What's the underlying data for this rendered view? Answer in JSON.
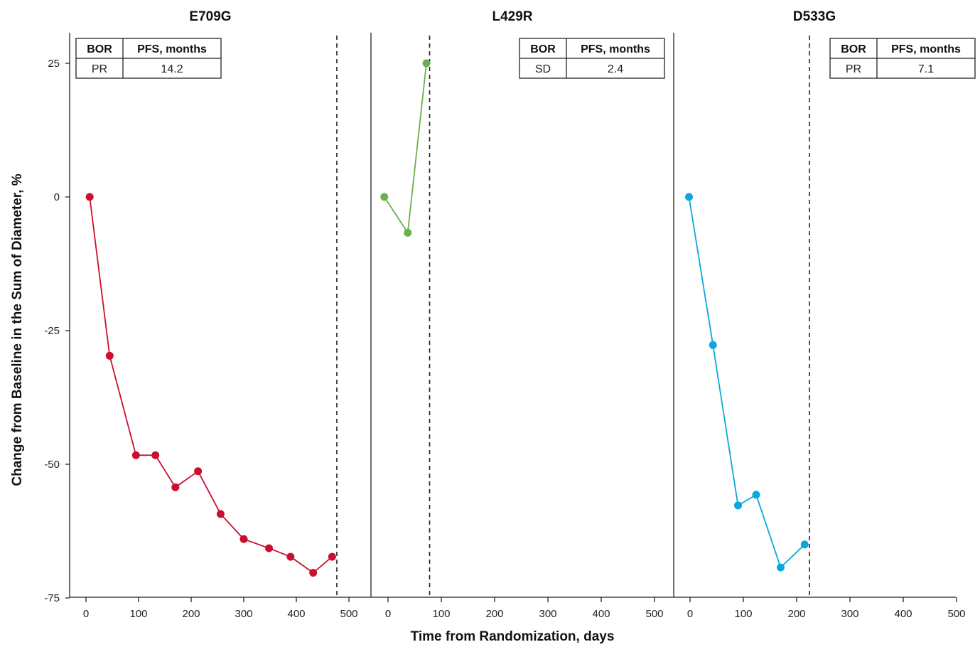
{
  "chart_data": {
    "type": "line",
    "xlabel": "Time from Randomization, days",
    "ylabel": "Change from Baseline in the Sum of Diameter, %",
    "ylim": [
      -75,
      29
    ],
    "yticks": [
      25,
      0,
      -25,
      -50,
      -75
    ],
    "ytick_labels": [
      "25",
      "0",
      "-25",
      "-50",
      "-75"
    ],
    "grid": false,
    "panels": [
      {
        "title": "E709G",
        "xlim": [
          -30,
          505
        ],
        "xticks": [
          0,
          100,
          200,
          300,
          400,
          500
        ],
        "xtick_labels": [
          "0",
          "100",
          "200",
          "300",
          "400",
          "500"
        ],
        "color": "#c8102e",
        "pfs_day": 477,
        "table": {
          "headers": [
            "BOR",
            "PFS, months"
          ],
          "values": [
            "PR",
            "14.2"
          ],
          "position": "top-left"
        },
        "x": [
          7,
          45,
          95,
          132,
          170,
          213,
          256,
          300,
          348,
          389,
          432,
          468
        ],
        "y": [
          0,
          -29.7,
          -48.3,
          -48.3,
          -54.3,
          -51.3,
          -59.3,
          -64,
          -65.7,
          -67.3,
          -70.3,
          -67.3
        ]
      },
      {
        "title": "L429R",
        "xlim": [
          -30,
          505
        ],
        "xticks": [
          0,
          100,
          200,
          300,
          400,
          500
        ],
        "xtick_labels": [
          "0",
          "100",
          "200",
          "300",
          "400",
          "500"
        ],
        "color": "#6ab04c",
        "pfs_day": 78,
        "table": {
          "headers": [
            "BOR",
            "PFS, months"
          ],
          "values": [
            "SD",
            "2.4"
          ],
          "position": "top-right"
        },
        "x": [
          -7,
          37,
          72
        ],
        "y": [
          0,
          -6.7,
          25
        ]
      },
      {
        "title": "D533G",
        "xlim": [
          -30,
          505
        ],
        "xticks": [
          0,
          100,
          200,
          300,
          400,
          500
        ],
        "xtick_labels": [
          "0",
          "100",
          "200",
          "300",
          "400",
          "500"
        ],
        "color": "#0aa8dc",
        "pfs_day": 224,
        "table": {
          "headers": [
            "BOR",
            "PFS, months"
          ],
          "values": [
            "PR",
            "7.1"
          ],
          "position": "top-right"
        },
        "x": [
          -2,
          43,
          90,
          124,
          170,
          215
        ],
        "y": [
          0,
          -27.7,
          -57.7,
          -55.7,
          -69.3,
          -65
        ]
      }
    ]
  }
}
